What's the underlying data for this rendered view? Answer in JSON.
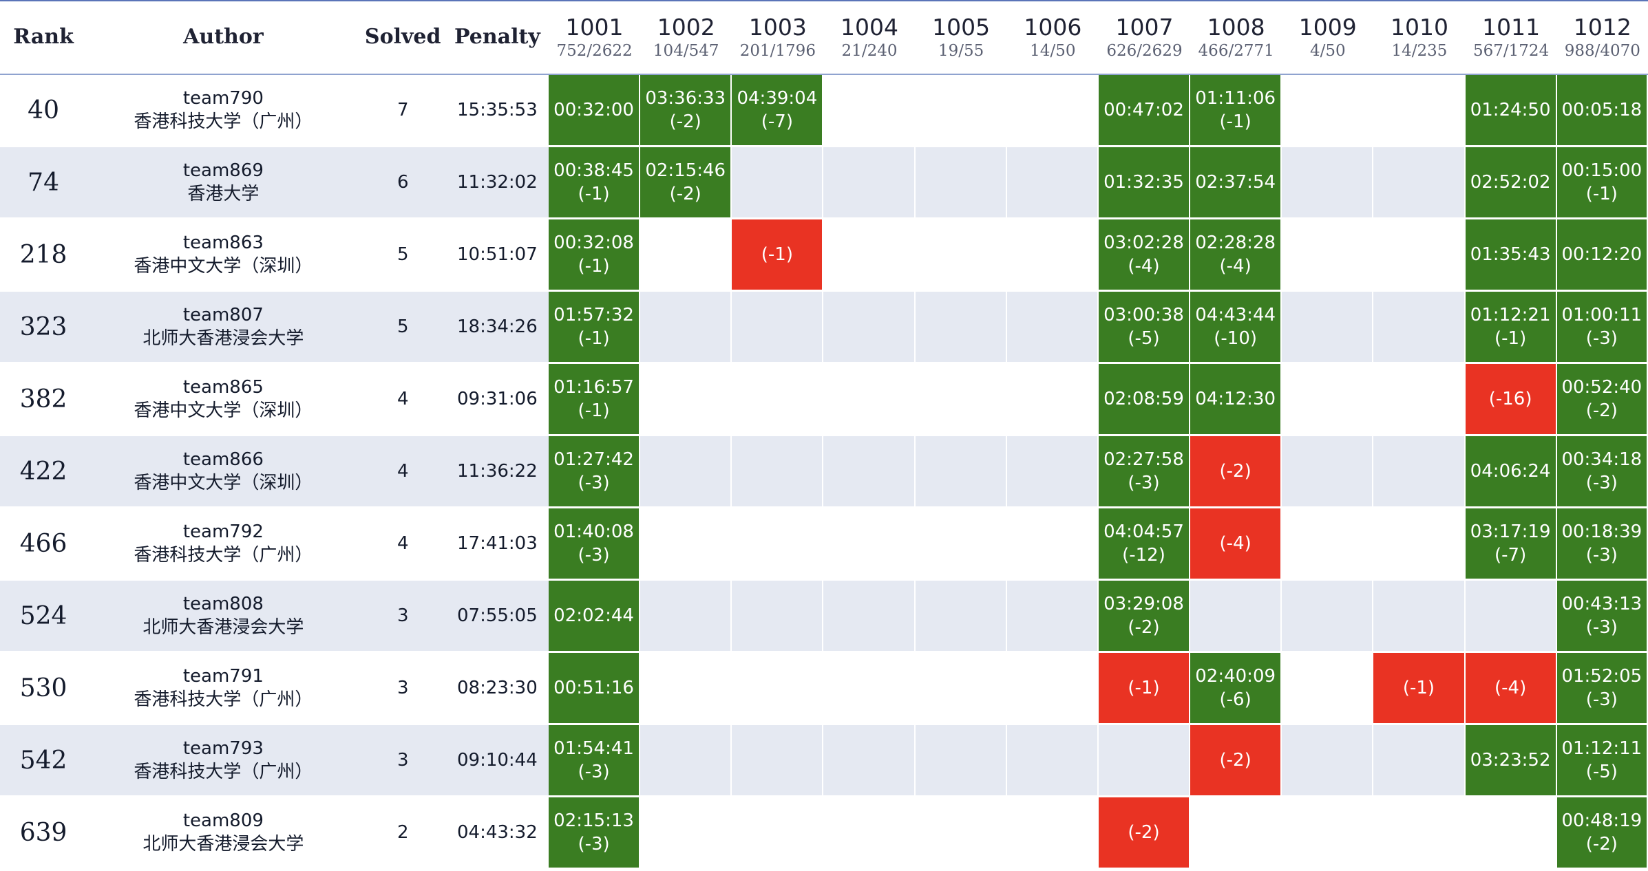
{
  "headers": {
    "rank": "Rank",
    "author": "Author",
    "solved": "Solved",
    "penalty": "Penalty"
  },
  "problems": [
    {
      "id": "1001",
      "stat": "752/2622"
    },
    {
      "id": "1002",
      "stat": "104/547"
    },
    {
      "id": "1003",
      "stat": "201/1796"
    },
    {
      "id": "1004",
      "stat": "21/240"
    },
    {
      "id": "1005",
      "stat": "19/55"
    },
    {
      "id": "1006",
      "stat": "14/50"
    },
    {
      "id": "1007",
      "stat": "626/2629"
    },
    {
      "id": "1008",
      "stat": "466/2771"
    },
    {
      "id": "1009",
      "stat": "4/50"
    },
    {
      "id": "1010",
      "stat": "14/235"
    },
    {
      "id": "1011",
      "stat": "567/1724"
    },
    {
      "id": "1012",
      "stat": "988/4070"
    }
  ],
  "rows": [
    {
      "rank": "40",
      "team": "team790",
      "school": "香港科技大学（广州）",
      "solved": "7",
      "penalty": "15:35:53",
      "cells": [
        {
          "s": "ac",
          "t": "00:32:00",
          "a": ""
        },
        {
          "s": "ac",
          "t": "03:36:33",
          "a": "(-2)"
        },
        {
          "s": "ac",
          "t": "04:39:04",
          "a": "(-7)"
        },
        null,
        null,
        null,
        {
          "s": "ac",
          "t": "00:47:02",
          "a": ""
        },
        {
          "s": "ac",
          "t": "01:11:06",
          "a": "(-1)"
        },
        null,
        null,
        {
          "s": "ac",
          "t": "01:24:50",
          "a": ""
        },
        {
          "s": "ac",
          "t": "00:05:18",
          "a": ""
        }
      ]
    },
    {
      "rank": "74",
      "team": "team869",
      "school": "香港大学",
      "solved": "6",
      "penalty": "11:32:02",
      "cells": [
        {
          "s": "ac",
          "t": "00:38:45",
          "a": "(-1)"
        },
        {
          "s": "ac",
          "t": "02:15:46",
          "a": "(-2)"
        },
        null,
        null,
        null,
        null,
        {
          "s": "ac",
          "t": "01:32:35",
          "a": ""
        },
        {
          "s": "ac",
          "t": "02:37:54",
          "a": ""
        },
        null,
        null,
        {
          "s": "ac",
          "t": "02:52:02",
          "a": ""
        },
        {
          "s": "ac",
          "t": "00:15:00",
          "a": "(-1)"
        }
      ]
    },
    {
      "rank": "218",
      "team": "team863",
      "school": "香港中文大学（深圳）",
      "solved": "5",
      "penalty": "10:51:07",
      "cells": [
        {
          "s": "ac",
          "t": "00:32:08",
          "a": "(-1)"
        },
        null,
        {
          "s": "wa",
          "t": "(-1)",
          "a": ""
        },
        null,
        null,
        null,
        {
          "s": "ac",
          "t": "03:02:28",
          "a": "(-4)"
        },
        {
          "s": "ac",
          "t": "02:28:28",
          "a": "(-4)"
        },
        null,
        null,
        {
          "s": "ac",
          "t": "01:35:43",
          "a": ""
        },
        {
          "s": "ac",
          "t": "00:12:20",
          "a": ""
        }
      ]
    },
    {
      "rank": "323",
      "team": "team807",
      "school": "北师大香港浸会大学",
      "solved": "5",
      "penalty": "18:34:26",
      "cells": [
        {
          "s": "ac",
          "t": "01:57:32",
          "a": "(-1)"
        },
        null,
        null,
        null,
        null,
        null,
        {
          "s": "ac",
          "t": "03:00:38",
          "a": "(-5)"
        },
        {
          "s": "ac",
          "t": "04:43:44",
          "a": "(-10)"
        },
        null,
        null,
        {
          "s": "ac",
          "t": "01:12:21",
          "a": "(-1)"
        },
        {
          "s": "ac",
          "t": "01:00:11",
          "a": "(-3)"
        }
      ]
    },
    {
      "rank": "382",
      "team": "team865",
      "school": "香港中文大学（深圳）",
      "solved": "4",
      "penalty": "09:31:06",
      "cells": [
        {
          "s": "ac",
          "t": "01:16:57",
          "a": "(-1)"
        },
        null,
        null,
        null,
        null,
        null,
        {
          "s": "ac",
          "t": "02:08:59",
          "a": ""
        },
        {
          "s": "ac",
          "t": "04:12:30",
          "a": ""
        },
        null,
        null,
        {
          "s": "wa",
          "t": "(-16)",
          "a": ""
        },
        {
          "s": "ac",
          "t": "00:52:40",
          "a": "(-2)"
        }
      ]
    },
    {
      "rank": "422",
      "team": "team866",
      "school": "香港中文大学（深圳）",
      "solved": "4",
      "penalty": "11:36:22",
      "cells": [
        {
          "s": "ac",
          "t": "01:27:42",
          "a": "(-3)"
        },
        null,
        null,
        null,
        null,
        null,
        {
          "s": "ac",
          "t": "02:27:58",
          "a": "(-3)"
        },
        {
          "s": "wa",
          "t": "(-2)",
          "a": ""
        },
        null,
        null,
        {
          "s": "ac",
          "t": "04:06:24",
          "a": ""
        },
        {
          "s": "ac",
          "t": "00:34:18",
          "a": "(-3)"
        }
      ]
    },
    {
      "rank": "466",
      "team": "team792",
      "school": "香港科技大学（广州）",
      "solved": "4",
      "penalty": "17:41:03",
      "cells": [
        {
          "s": "ac",
          "t": "01:40:08",
          "a": "(-3)"
        },
        null,
        null,
        null,
        null,
        null,
        {
          "s": "ac",
          "t": "04:04:57",
          "a": "(-12)"
        },
        {
          "s": "wa",
          "t": "(-4)",
          "a": ""
        },
        null,
        null,
        {
          "s": "ac",
          "t": "03:17:19",
          "a": "(-7)"
        },
        {
          "s": "ac",
          "t": "00:18:39",
          "a": "(-3)"
        }
      ]
    },
    {
      "rank": "524",
      "team": "team808",
      "school": "北师大香港浸会大学",
      "solved": "3",
      "penalty": "07:55:05",
      "cells": [
        {
          "s": "ac",
          "t": "02:02:44",
          "a": ""
        },
        null,
        null,
        null,
        null,
        null,
        {
          "s": "ac",
          "t": "03:29:08",
          "a": "(-2)"
        },
        null,
        null,
        null,
        null,
        {
          "s": "ac",
          "t": "00:43:13",
          "a": "(-3)"
        }
      ]
    },
    {
      "rank": "530",
      "team": "team791",
      "school": "香港科技大学（广州）",
      "solved": "3",
      "penalty": "08:23:30",
      "cells": [
        {
          "s": "ac",
          "t": "00:51:16",
          "a": ""
        },
        null,
        null,
        null,
        null,
        null,
        {
          "s": "wa",
          "t": "(-1)",
          "a": ""
        },
        {
          "s": "ac",
          "t": "02:40:09",
          "a": "(-6)"
        },
        null,
        {
          "s": "wa",
          "t": "(-1)",
          "a": ""
        },
        {
          "s": "wa",
          "t": "(-4)",
          "a": ""
        },
        {
          "s": "ac",
          "t": "01:52:05",
          "a": "(-3)"
        }
      ]
    },
    {
      "rank": "542",
      "team": "team793",
      "school": "香港科技大学（广州）",
      "solved": "3",
      "penalty": "09:10:44",
      "cells": [
        {
          "s": "ac",
          "t": "01:54:41",
          "a": "(-3)"
        },
        null,
        null,
        null,
        null,
        null,
        null,
        {
          "s": "wa",
          "t": "(-2)",
          "a": ""
        },
        null,
        null,
        {
          "s": "ac",
          "t": "03:23:52",
          "a": ""
        },
        {
          "s": "ac",
          "t": "01:12:11",
          "a": "(-5)"
        }
      ]
    },
    {
      "rank": "639",
      "team": "team809",
      "school": "北师大香港浸会大学",
      "solved": "2",
      "penalty": "04:43:32",
      "cells": [
        {
          "s": "ac",
          "t": "02:15:13",
          "a": "(-3)"
        },
        null,
        null,
        null,
        null,
        null,
        {
          "s": "wa",
          "t": "(-2)",
          "a": ""
        },
        null,
        null,
        null,
        null,
        {
          "s": "ac",
          "t": "00:48:19",
          "a": "(-2)"
        }
      ]
    }
  ]
}
